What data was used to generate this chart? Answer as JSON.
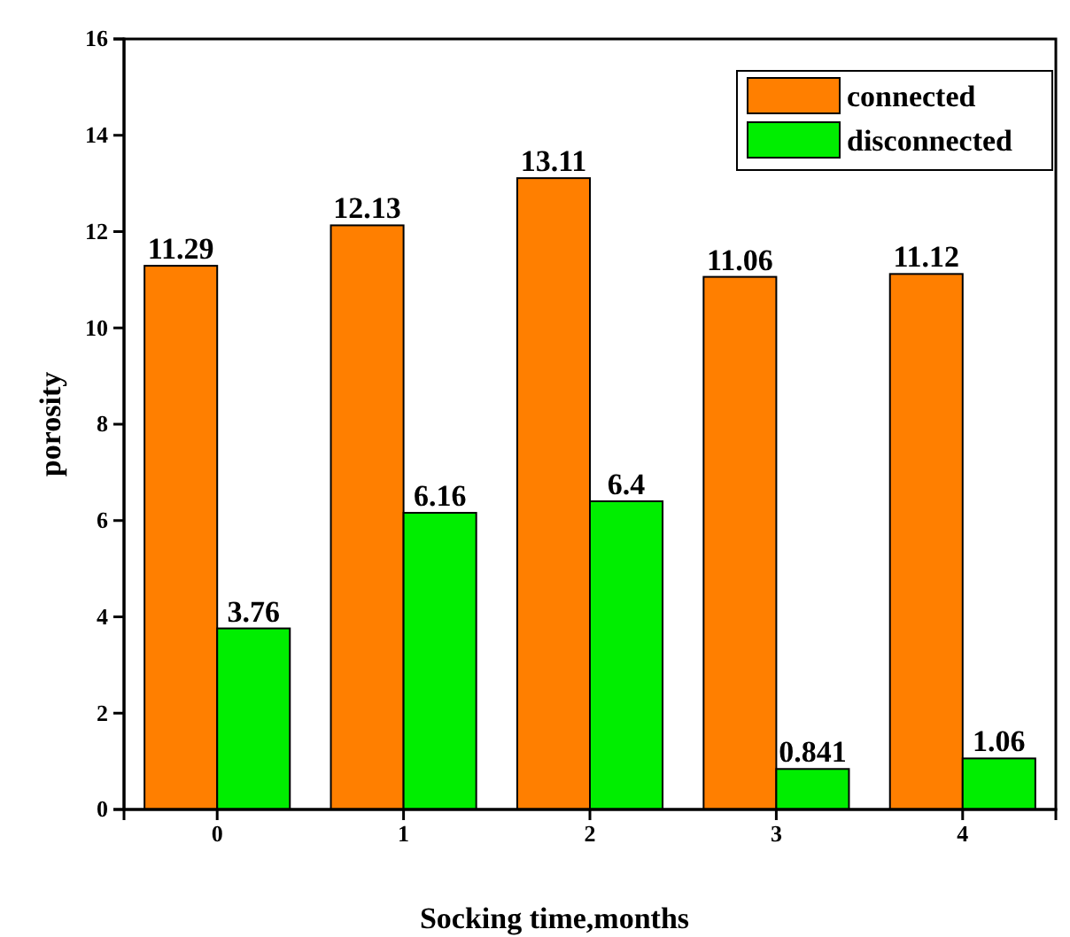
{
  "chart_data": {
    "type": "bar",
    "xlabel": "Socking time,months",
    "ylabel": "porosity",
    "categories": [
      "0",
      "1",
      "2",
      "3",
      "4"
    ],
    "series": [
      {
        "name": "connected",
        "color": "#ff7f00",
        "values": [
          11.29,
          12.13,
          13.11,
          11.06,
          11.12
        ]
      },
      {
        "name": "disconnected",
        "color": "#00ee00",
        "values": [
          3.76,
          6.16,
          6.4,
          0.841,
          1.06
        ]
      }
    ],
    "ylim": [
      0,
      16
    ],
    "yticks": [
      0,
      2,
      4,
      6,
      8,
      10,
      12,
      14,
      16
    ],
    "data_labels": true,
    "legend": "top right",
    "grid": false
  }
}
